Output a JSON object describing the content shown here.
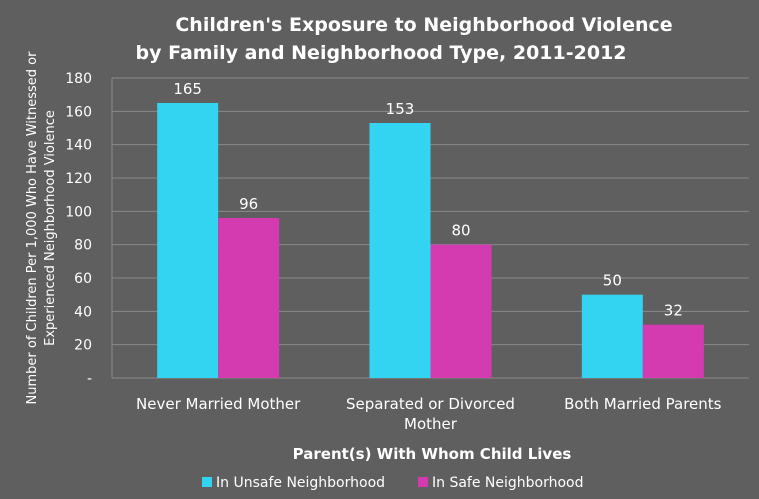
{
  "chart_data": {
    "type": "bar",
    "title_line1": "Children's Exposure to Neighborhood Violence",
    "title_line2": "by Family and Neighborhood Type, 2011-2012",
    "ylabel_line1": "Number of Children Per 1,000 Who Have Witnessed or",
    "ylabel_line2": "Experienced Neighborhood Violence",
    "xlabel": "Parent(s) With Whom Child Lives",
    "categories": [
      {
        "line1": "Never Married Mother",
        "line2": ""
      },
      {
        "line1": "Separated or Divorced",
        "line2": "Mother"
      },
      {
        "line1": "Both Married Parents",
        "line2": ""
      }
    ],
    "series": [
      {
        "name": "In Unsafe Neighborhood",
        "color": "#33d4f1",
        "values": [
          165,
          153,
          50
        ]
      },
      {
        "name": "In Safe Neighborhood",
        "color": "#d53bb0",
        "values": [
          96,
          80,
          32
        ]
      }
    ],
    "ylim": [
      0,
      180
    ],
    "yticks": [
      "-",
      "20",
      "40",
      "60",
      "80",
      "100",
      "120",
      "140",
      "160",
      "180"
    ],
    "grid": true,
    "legend_position": "bottom"
  }
}
